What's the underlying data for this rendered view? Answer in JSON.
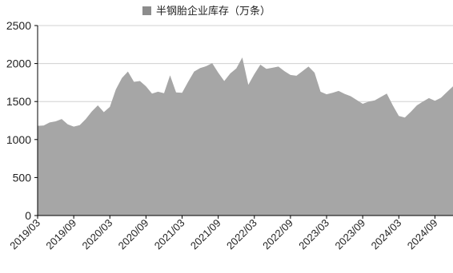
{
  "chart_data": {
    "type": "area",
    "title": "",
    "xlabel": "",
    "ylabel": "",
    "ylim": [
      0,
      2500
    ],
    "yticks": [
      0,
      500,
      1000,
      1500,
      2000,
      2500
    ],
    "xtick_labels": [
      "2019/03",
      "2019/09",
      "2020/03",
      "2020/09",
      "2021/03",
      "2021/09",
      "2022/03",
      "2022/09",
      "2023/03",
      "2023/09",
      "2024/03",
      "2024/09"
    ],
    "legend": {
      "position": "top-center"
    },
    "grid": {
      "y": true,
      "x": false
    },
    "colors": {
      "fill": "#a6a6a6",
      "legend_swatch": "#8c8c8c",
      "grid": "#d0d0d0"
    },
    "series": [
      {
        "name": "半钢胎企业库存（万条）",
        "x": [
          "2019/03",
          "2019/04",
          "2019/05",
          "2019/06",
          "2019/07",
          "2019/08",
          "2019/09",
          "2019/10",
          "2019/11",
          "2019/12",
          "2020/01",
          "2020/02",
          "2020/03",
          "2020/04",
          "2020/05",
          "2020/06",
          "2020/07",
          "2020/08",
          "2020/09",
          "2020/10",
          "2020/11",
          "2020/12",
          "2021/01",
          "2021/02",
          "2021/03",
          "2021/04",
          "2021/05",
          "2021/06",
          "2021/07",
          "2021/08",
          "2021/09",
          "2021/10",
          "2021/11",
          "2021/12",
          "2022/01",
          "2022/02",
          "2022/03",
          "2022/04",
          "2022/05",
          "2022/06",
          "2022/07",
          "2022/08",
          "2022/09",
          "2022/10",
          "2022/11",
          "2022/12",
          "2023/01",
          "2023/02",
          "2023/03",
          "2023/04",
          "2023/05",
          "2023/06",
          "2023/07",
          "2023/08",
          "2023/09",
          "2023/10",
          "2023/11",
          "2023/12",
          "2024/01",
          "2024/02",
          "2024/03",
          "2024/04",
          "2024/05",
          "2024/06",
          "2024/07",
          "2024/08",
          "2024/09",
          "2024/10",
          "2024/11",
          "2024/12"
        ],
        "values": [
          1180,
          1185,
          1225,
          1240,
          1270,
          1200,
          1170,
          1190,
          1270,
          1370,
          1450,
          1360,
          1430,
          1660,
          1810,
          1895,
          1760,
          1770,
          1700,
          1605,
          1630,
          1610,
          1845,
          1620,
          1615,
          1760,
          1895,
          1940,
          1965,
          2005,
          1880,
          1770,
          1870,
          1935,
          2080,
          1720,
          1860,
          1985,
          1930,
          1945,
          1960,
          1900,
          1850,
          1840,
          1900,
          1960,
          1880,
          1630,
          1595,
          1615,
          1640,
          1600,
          1570,
          1520,
          1470,
          1500,
          1515,
          1560,
          1605,
          1450,
          1310,
          1290,
          1365,
          1450,
          1500,
          1545,
          1510,
          1550,
          1625,
          1700
        ]
      }
    ]
  }
}
